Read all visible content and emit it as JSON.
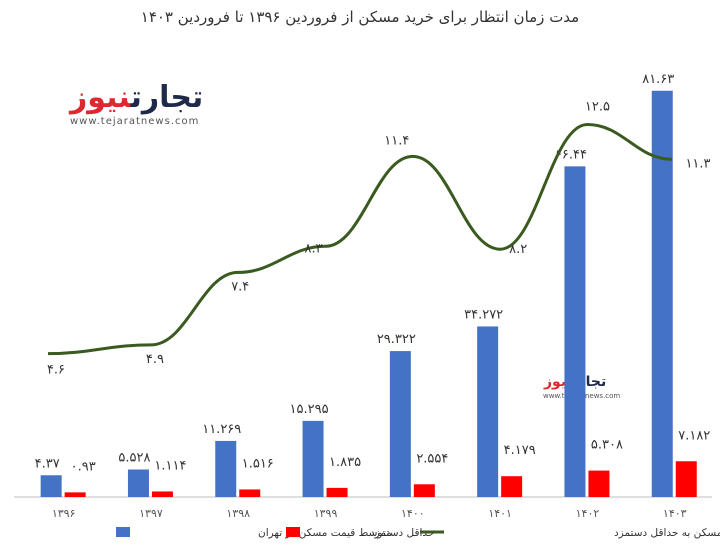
{
  "chart_data": {
    "type": "bar",
    "title": "مدت زمان انتظار برای خرید مسکن از فروردین ۱۳۹۶ تا فروردین ۱۴۰۳",
    "categories": [
      "۱۳۹۶",
      "۱۳۹۷",
      "۱۳۹۸",
      "۱۳۹۹",
      "۱۴۰۰",
      "۱۴۰۱",
      "۱۴۰۲",
      "۱۴۰۳"
    ],
    "series": [
      {
        "name": "متوسط قیمت مسکن در تهران",
        "color": "#4472c4",
        "values": [
          4.37,
          5.528,
          11.269,
          15.295,
          29.322,
          34.272,
          66.44,
          81.63
        ],
        "labels": [
          "۴.۳۷",
          "۵.۵۲۸",
          "۱۱.۲۶۹",
          "۱۵.۲۹۵",
          "۲۹.۳۲۲",
          "۳۴.۲۷۲",
          "۶۶.۴۴",
          "۸۱.۶۳"
        ]
      },
      {
        "name": "حداقل دستمزد",
        "color": "#ff0000",
        "values": [
          0.93,
          1.114,
          1.516,
          1.835,
          2.554,
          4.179,
          5.308,
          7.182
        ],
        "labels": [
          "۰.۹۳",
          "۱.۱۱۴",
          "۱.۵۱۶",
          "۱.۸۳۵",
          "۲.۵۵۴",
          "۴.۱۷۹",
          "۵.۳۰۸",
          "۷.۱۸۲"
        ]
      },
      {
        "name": "نسبت متوسط قیمت مسکن به حداقل دستمزد",
        "type": "line",
        "color": "#3a5a1f",
        "values": [
          4.6,
          4.9,
          7.4,
          8.3,
          11.4,
          8.2,
          12.5,
          11.3
        ],
        "labels": [
          "۴.۶",
          "۴.۹",
          "۷.۴",
          "۸.۳",
          "۱۱.۴",
          "۸.۲",
          "۱۲.۵",
          "۱۱.۳"
        ]
      }
    ],
    "ylim": [
      0,
      85
    ],
    "grid": false,
    "legend": "bottom"
  },
  "branding": {
    "logo_text_main": "تجارت",
    "logo_text_accent": "نیوز",
    "logo_url": "www.tejaratnews.com",
    "logo_small_main": "تجارت",
    "logo_small_accent": "نیوز",
    "logo_small_url": "www.tejaratnews.com"
  }
}
